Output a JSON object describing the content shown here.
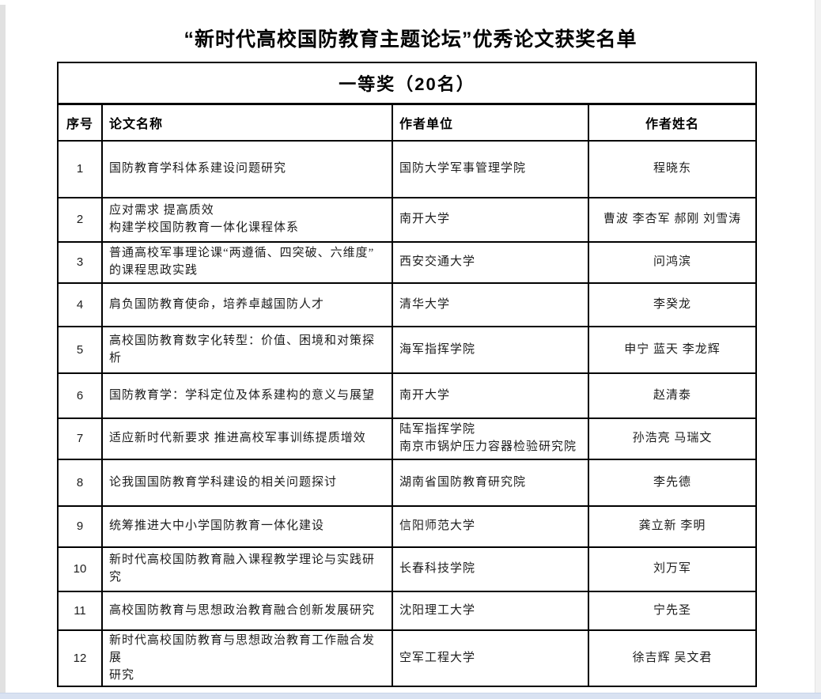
{
  "page": {
    "title": "“新时代高校国防教育主题论坛”优秀论文获奖名单"
  },
  "table": {
    "section_header": "一等奖（20名）",
    "columns": [
      "序号",
      "论文名称",
      "作者单位",
      "作者姓名"
    ],
    "rows": [
      {
        "no": "1",
        "title": "国防教育学科体系建设问题研究",
        "org": "国防大学军事管理学院",
        "authors": "程晓东"
      },
      {
        "no": "2",
        "title": "应对需求 提高质效\n构建学校国防教育一体化课程体系",
        "org": "南开大学",
        "authors": "曹波 李杏军 郝刚 刘雪涛"
      },
      {
        "no": "3",
        "title": "普通高校军事理论课“两遵循、四突破、六维度”\n的课程思政实践",
        "org": "西安交通大学",
        "authors": "问鸿滨"
      },
      {
        "no": "4",
        "title": "肩负国防教育使命，培养卓越国防人才",
        "org": "清华大学",
        "authors": "李癸龙"
      },
      {
        "no": "5",
        "title": "高校国防教育数字化转型：价值、困境和对策探析",
        "org": "海军指挥学院",
        "authors": "申宁 蓝天 李龙辉"
      },
      {
        "no": "6",
        "title": "国防教育学：学科定位及体系建构的意义与展望",
        "org": "南开大学",
        "authors": "赵清泰"
      },
      {
        "no": "7",
        "title": "适应新时代新要求 推进高校军事训练提质增效",
        "org": "陆军指挥学院\n南京市锅炉压力容器检验研究院",
        "authors": "孙浩亮 马瑞文"
      },
      {
        "no": "8",
        "title": "论我国国防教育学科建设的相关问题探讨",
        "org": "湖南省国防教育研究院",
        "authors": "李先德"
      },
      {
        "no": "9",
        "title": "统筹推进大中小学国防教育一体化建设",
        "org": "信阳师范大学",
        "authors": "龚立新 李明"
      },
      {
        "no": "10",
        "title": "新时代高校国防教育融入课程教学理论与实践研究",
        "org": "长春科技学院",
        "authors": "刘万军"
      },
      {
        "no": "11",
        "title": "高校国防教育与思想政治教育融合创新发展研究",
        "org": "沈阳理工大学",
        "authors": "宁先圣"
      },
      {
        "no": "12",
        "title": "新时代高校国防教育与思想政治教育工作融合发展\n研究",
        "org": "空军工程大学",
        "authors": "徐吉辉 吴文君"
      }
    ]
  }
}
